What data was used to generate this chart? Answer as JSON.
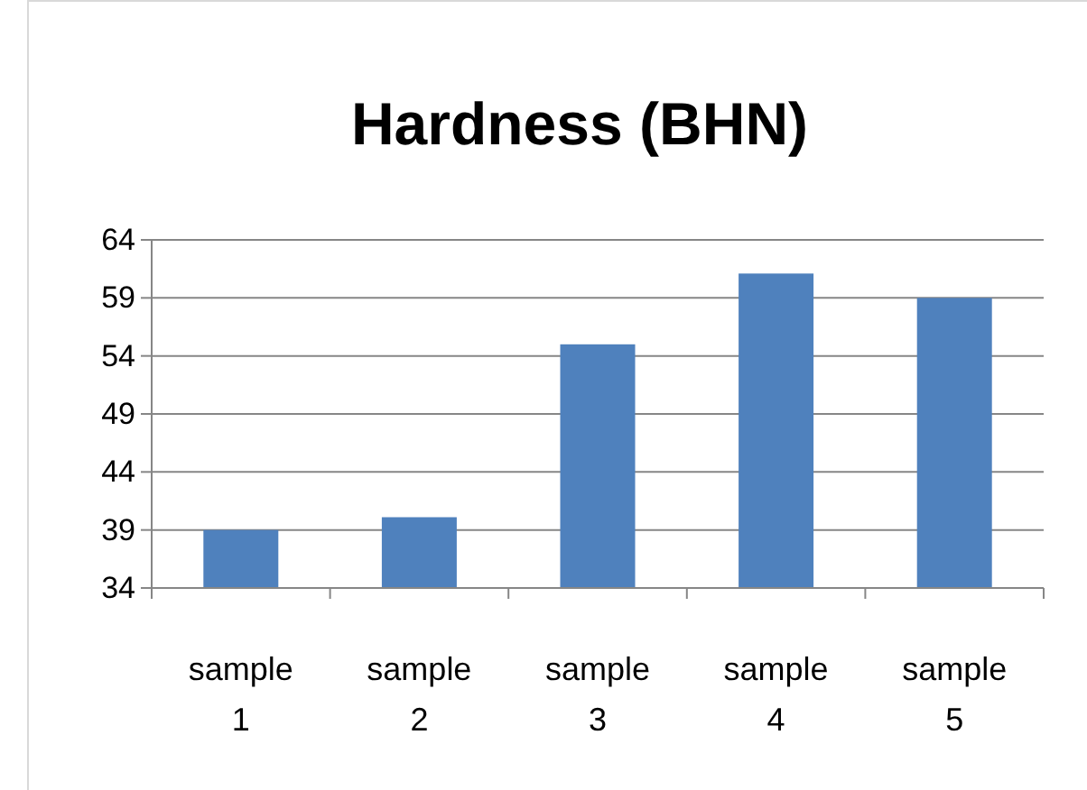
{
  "chart_data": {
    "type": "bar",
    "title": "Hardness (BHN)",
    "categories": [
      "sample 1",
      "sample 2",
      "sample 3",
      "sample 4",
      "sample 5"
    ],
    "values": [
      39,
      40.1,
      55,
      61.1,
      59
    ],
    "color": "#4f81bd",
    "ylim": [
      34,
      64
    ],
    "yticks": [
      34,
      39,
      44,
      49,
      54,
      59,
      64
    ],
    "grid": "y"
  }
}
